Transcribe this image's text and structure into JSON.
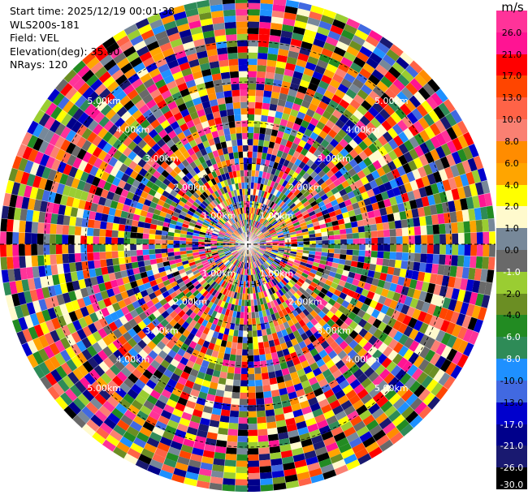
{
  "info": {
    "start_time": "Start time: 2025/12/19 00:01:38",
    "station": "WLS200s-181",
    "field": "Field: VEL",
    "elevation": "Elevation(deg): 35.00",
    "nrays": "NRays: 120"
  },
  "colorbar": {
    "unit": "m/s",
    "levels": [
      {
        "label": "26.0",
        "color": "#ff3399"
      },
      {
        "label": "21.0",
        "color": "#ff1493"
      },
      {
        "label": "17.0",
        "color": "#ff0000"
      },
      {
        "label": "13.0",
        "color": "#ff4500"
      },
      {
        "label": "10.0",
        "color": "#ff6347"
      },
      {
        "label": "8.0",
        "color": "#fa8072"
      },
      {
        "label": "6.0",
        "color": "#ff8c00"
      },
      {
        "label": "4.0",
        "color": "#ffa500"
      },
      {
        "label": "2.0",
        "color": "#ffff00"
      },
      {
        "label": "1.0",
        "color": "#fffacd"
      },
      {
        "label": "0.0",
        "color": "#778899"
      },
      {
        "label": "-1.0",
        "color": "#696969"
      },
      {
        "label": "-2.0",
        "color": "#9acd32"
      },
      {
        "label": "-4.0",
        "color": "#6b8e23"
      },
      {
        "label": "-6.0",
        "color": "#228b22"
      },
      {
        "label": "-8.0",
        "color": "#2e8b57"
      },
      {
        "label": "-10.0",
        "color": "#1e90ff"
      },
      {
        "label": "-13.0",
        "color": "#4169e1"
      },
      {
        "label": "-17.0",
        "color": "#0000cd"
      },
      {
        "label": "-21.0",
        "color": "#00008b"
      },
      {
        "label": "-26.0",
        "color": "#191970"
      },
      {
        "label": "-30.0",
        "color": "#000000"
      }
    ]
  },
  "chart_data": {
    "type": "heatmap",
    "projection": "polar-ppi",
    "nrays": 120,
    "range_rings_km": [
      1,
      2,
      3,
      4,
      5
    ],
    "ring_labels": [
      "1.00km",
      "2.00km",
      "3.00km",
      "4.00km",
      "5.00km"
    ],
    "unit": "m/s",
    "grid": true
  }
}
